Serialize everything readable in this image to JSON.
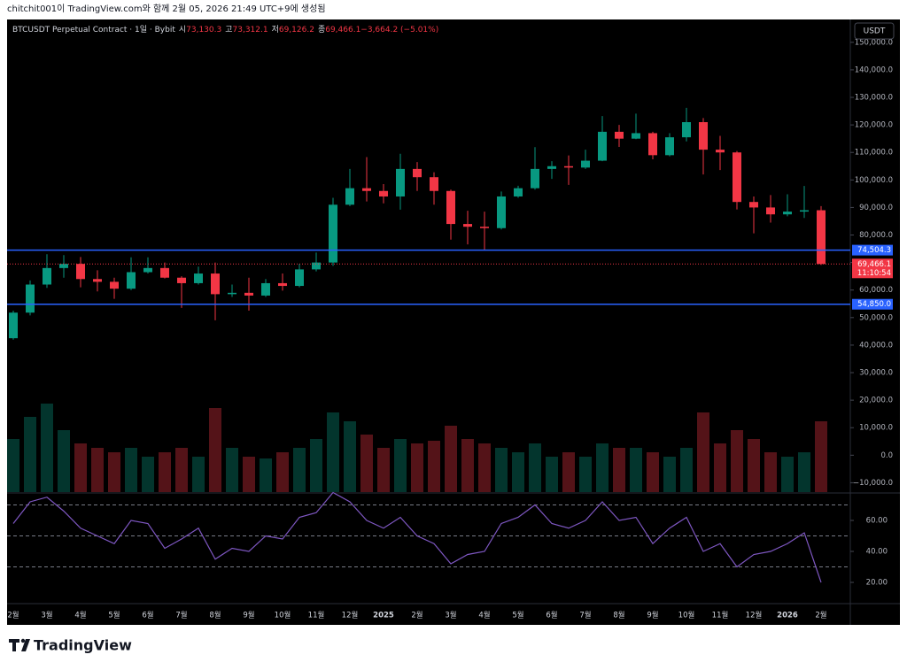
{
  "header": "chitchit001이 TradingView.com와 함께 2월 05, 2026 21:49 UTC+9에 생성됨",
  "footer": {
    "brand": "TradingView"
  },
  "chart_data": {
    "type": "candlestick",
    "title": "BTCUSDT Perpetual Contract · 1일 · Bybit",
    "legend": [
      [
        "시",
        "73,130.3"
      ],
      [
        "고",
        "73,312.1"
      ],
      [
        "저",
        "69,126.2"
      ],
      [
        "종",
        "69,466.1"
      ],
      [
        "",
        "−3,664.2 (−5.01%)"
      ]
    ],
    "currency": "USDT",
    "up_color": "#089981",
    "down_color": "#f23645",
    "categories": [
      "2월",
      null,
      "3월",
      null,
      "4월",
      null,
      "5월",
      null,
      "6월",
      null,
      "7월",
      null,
      "8월",
      null,
      "9월",
      null,
      "10월",
      null,
      "11월",
      null,
      "12월",
      null,
      "2025",
      null,
      "2월",
      null,
      "3월",
      null,
      "4월",
      null,
      "5월",
      null,
      "6월",
      null,
      "7월",
      null,
      "8월",
      null,
      "9월",
      null,
      "10월",
      null,
      "11월",
      null,
      "12월",
      null,
      "2026",
      null,
      "2월"
    ],
    "candles": [
      [
        42500,
        52500,
        42000,
        51800
      ],
      [
        51800,
        63500,
        50800,
        62000
      ],
      [
        62000,
        73000,
        60800,
        68000
      ],
      [
        68000,
        72700,
        64500,
        69500
      ],
      [
        69500,
        72000,
        61000,
        64000
      ],
      [
        64000,
        67200,
        59500,
        63000
      ],
      [
        63000,
        64500,
        56800,
        60500
      ],
      [
        60500,
        71900,
        60000,
        66500
      ],
      [
        66500,
        71900,
        66000,
        68000
      ],
      [
        68000,
        70000,
        64200,
        64500
      ],
      [
        64500,
        65000,
        53500,
        62500
      ],
      [
        62500,
        68500,
        62000,
        66000
      ],
      [
        66000,
        70000,
        49000,
        58500
      ],
      [
        58500,
        62000,
        57500,
        59000
      ],
      [
        59000,
        64500,
        52500,
        58000
      ],
      [
        58000,
        64000,
        57500,
        62500
      ],
      [
        62500,
        66000,
        59800,
        61500
      ],
      [
        61500,
        69500,
        61000,
        67500
      ],
      [
        67500,
        73600,
        66800,
        70000
      ],
      [
        70000,
        93500,
        68800,
        91000
      ],
      [
        91000,
        104000,
        90500,
        97000
      ],
      [
        97000,
        108300,
        92200,
        96000
      ],
      [
        96000,
        98500,
        91500,
        94000
      ],
      [
        94000,
        109500,
        89200,
        104000
      ],
      [
        104000,
        106500,
        96000,
        101000
      ],
      [
        101000,
        102800,
        91000,
        96000
      ],
      [
        96000,
        96500,
        78300,
        84000
      ],
      [
        84000,
        88800,
        76600,
        83000
      ],
      [
        83000,
        88500,
        74500,
        82500
      ],
      [
        82500,
        95800,
        82000,
        94000
      ],
      [
        94000,
        97900,
        93500,
        97000
      ],
      [
        97000,
        111900,
        96500,
        104000
      ],
      [
        104000,
        106800,
        100400,
        105000
      ],
      [
        105000,
        108900,
        98200,
        104500
      ],
      [
        104500,
        111000,
        104000,
        107000
      ],
      [
        107000,
        123200,
        106800,
        117500
      ],
      [
        117500,
        120000,
        112000,
        115000
      ],
      [
        115000,
        124100,
        114800,
        117000
      ],
      [
        117000,
        117500,
        107500,
        109000
      ],
      [
        109000,
        117000,
        108600,
        115500
      ],
      [
        115500,
        126200,
        114000,
        121000
      ],
      [
        121000,
        122500,
        102000,
        111000
      ],
      [
        111000,
        116000,
        103600,
        110000
      ],
      [
        110000,
        110500,
        89300,
        92000
      ],
      [
        92000,
        94000,
        80600,
        90000
      ],
      [
        90000,
        94500,
        84500,
        87500
      ],
      [
        87500,
        94800,
        86800,
        88500
      ],
      [
        88500,
        97800,
        86200,
        89000
      ],
      [
        89000,
        90500,
        69126.2,
        69466.1
      ]
    ],
    "volume": [
      60,
      85,
      100,
      70,
      55,
      50,
      45,
      50,
      40,
      45,
      50,
      40,
      95,
      50,
      40,
      38,
      45,
      50,
      60,
      90,
      80,
      65,
      50,
      60,
      55,
      58,
      75,
      60,
      55,
      50,
      45,
      55,
      40,
      45,
      40,
      55,
      50,
      50,
      45,
      40,
      50,
      90,
      55,
      70,
      60,
      45,
      40,
      45,
      80
    ],
    "ylim": [
      -13400,
      158300
    ],
    "yticks": [
      {
        "value": -10000,
        "label": "−10,000.0"
      },
      {
        "value": 0,
        "label": "0.0"
      },
      {
        "value": 10000,
        "label": "10,000.0"
      },
      {
        "value": 20000,
        "label": "20,000.0"
      },
      {
        "value": 30000,
        "label": "30,000.0"
      },
      {
        "value": 40000,
        "label": "40,000.0"
      },
      {
        "value": 50000,
        "label": "50,000.0"
      },
      {
        "value": 60000,
        "label": "60,000.0"
      },
      {
        "value": 70000,
        "label": "70,000.0"
      },
      {
        "value": 80000,
        "label": "80,000.0"
      },
      {
        "value": 90000,
        "label": "90,000.0"
      },
      {
        "value": 100000,
        "label": "100,000.0"
      },
      {
        "value": 110000,
        "label": "110,000.0"
      },
      {
        "value": 120000,
        "label": "120,000.0"
      },
      {
        "value": 130000,
        "label": "130,000.0"
      },
      {
        "value": 140000,
        "label": "140,000.0"
      },
      {
        "value": 150000,
        "label": "150,000.0"
      }
    ],
    "hlines": [
      {
        "value": 74504.3,
        "label": "74,504.3",
        "color": "#2962ff"
      },
      {
        "value": 54850,
        "label": "54,850.0",
        "color": "#2962ff"
      }
    ],
    "last_price": {
      "value": 69466.1,
      "label": "69,466.1",
      "countdown": "11:10:54",
      "color": "#f23645"
    },
    "rsi": {
      "color": "#7e57c2",
      "values": [
        58,
        72,
        75,
        66,
        55,
        50,
        45,
        60,
        58,
        42,
        48,
        55,
        35,
        42,
        40,
        50,
        48,
        62,
        65,
        78,
        72,
        60,
        55,
        62,
        50,
        45,
        32,
        38,
        40,
        58,
        62,
        70,
        58,
        55,
        60,
        72,
        60,
        62,
        45,
        55,
        62,
        40,
        45,
        30,
        38,
        40,
        45,
        52,
        20
      ],
      "ylim": [
        6.3,
        77.7
      ],
      "yticks": [
        {
          "value": 20,
          "label": "20.00"
        },
        {
          "value": 40,
          "label": "40.00"
        },
        {
          "value": 60,
          "label": "60.00"
        }
      ],
      "levels": [
        30,
        50,
        70
      ]
    }
  }
}
